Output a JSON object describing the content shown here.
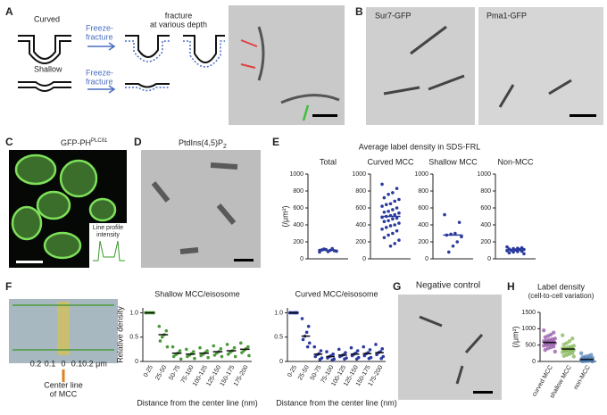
{
  "panels": {
    "A": {
      "letter": "A",
      "curved": "Curved",
      "shallow": "Shallow",
      "ff1": [
        "Freeze-",
        "fracture"
      ],
      "ff2": [
        "Freeze-",
        "fracture"
      ],
      "fracture": [
        "fracture",
        "at various depth"
      ]
    },
    "B": {
      "letter": "B",
      "left": "Sur7-GFP",
      "right": "Pma1-GFP"
    },
    "C": {
      "letter": "C",
      "title": "GFP-PH",
      "sup": "PLCδ1",
      "inset": [
        "Line profile",
        "intensity"
      ]
    },
    "D": {
      "letter": "D",
      "title": "PtdIns(4,5)P",
      "sub": "2"
    },
    "E": {
      "letter": "E"
    },
    "F": {
      "letter": "F",
      "scale": [
        "0.2",
        "0.1",
        "0",
        "0.1",
        "0.2 μm"
      ],
      "center": [
        "Center line",
        "of MCC"
      ]
    },
    "G": {
      "letter": "G",
      "title": "Negative control"
    },
    "H": {
      "letter": "H"
    }
  },
  "chart_data": [
    {
      "type": "strip",
      "facets": true,
      "title": "Average label density in SDS-FRL",
      "ylabel": "(/μm²)",
      "color": "#2b3a9c",
      "median_color": "#2b3a9c",
      "categories": [
        "Total",
        "Curved MCC",
        "Shallow MCC",
        "Non-MCC"
      ],
      "points": [
        [
          80,
          95,
          100,
          110,
          105,
          90,
          120,
          85,
          115,
          100
        ],
        [
          880,
          830,
          780,
          760,
          720,
          700,
          680,
          650,
          640,
          620,
          600,
          580,
          560,
          550,
          540,
          520,
          510,
          500,
          490,
          480,
          470,
          450,
          440,
          420,
          400,
          390,
          370,
          350,
          330,
          300,
          280,
          250,
          220,
          180,
          150
        ],
        [
          520,
          430,
          300,
          290,
          280,
          260,
          200,
          150,
          80
        ],
        [
          140,
          130,
          125,
          120,
          115,
          110,
          110,
          105,
          100,
          95,
          90,
          85,
          80,
          70,
          60
        ]
      ],
      "medians": [
        100,
        500,
        280,
        105
      ],
      "ylim": [
        0,
        1000
      ],
      "yticks": [
        0,
        200,
        400,
        600,
        800,
        1000
      ]
    },
    {
      "type": "strip",
      "title": "Shallow MCC/eisosome",
      "ylabel": "Relative density",
      "xlabel": "Distance from the center line (nm)",
      "color": "#4a9a3a",
      "median_color": "#111",
      "categories": [
        "0-25",
        "25-50",
        "50-75",
        "75-100",
        "100-125",
        "125-150",
        "150-175",
        "175-200"
      ],
      "points": [
        [
          1,
          1,
          1,
          1,
          1,
          1
        ],
        [
          0.72,
          0.63,
          0.55,
          0.5,
          0.42,
          0.3
        ],
        [
          0.3,
          0.22,
          0.17,
          0.14,
          0.1,
          0.05
        ],
        [
          0.25,
          0.2,
          0.16,
          0.13,
          0.1,
          0.06
        ],
        [
          0.28,
          0.22,
          0.18,
          0.15,
          0.12,
          0.08
        ],
        [
          0.32,
          0.26,
          0.2,
          0.17,
          0.13,
          0.1
        ],
        [
          0.35,
          0.28,
          0.22,
          0.19,
          0.15,
          0.1
        ],
        [
          0.38,
          0.3,
          0.26,
          0.22,
          0.18,
          0.12
        ]
      ],
      "medians": [
        1,
        0.55,
        0.17,
        0.15,
        0.17,
        0.2,
        0.22,
        0.25
      ],
      "ylim": [
        0,
        1.1
      ],
      "yticks": [
        0,
        0.5,
        {
          "value": 1,
          "label": "1.0"
        }
      ]
    },
    {
      "type": "strip",
      "title": "Curved MCC/eisosome",
      "xlabel": "Distance from the center line (nm)",
      "color": "#2b3aa0",
      "median_color": "#111",
      "categories": [
        "0-25",
        "25-50",
        "50-75",
        "75-100",
        "100-125",
        "125-150",
        "150-175",
        "175-200"
      ],
      "points": [
        [
          1,
          1,
          1,
          1,
          1,
          1,
          1
        ],
        [
          0.88,
          0.72,
          0.6,
          0.52,
          0.45,
          0.38,
          0.3
        ],
        [
          0.3,
          0.22,
          0.16,
          0.14,
          0.1,
          0.07,
          0.04
        ],
        [
          0.2,
          0.15,
          0.12,
          0.1,
          0.07,
          0.05,
          0.03
        ],
        [
          0.25,
          0.18,
          0.14,
          0.12,
          0.1,
          0.07,
          0.05
        ],
        [
          0.28,
          0.22,
          0.17,
          0.15,
          0.12,
          0.08,
          0.05
        ],
        [
          0.3,
          0.24,
          0.18,
          0.16,
          0.12,
          0.08,
          0.06
        ],
        [
          0.35,
          0.26,
          0.2,
          0.18,
          0.14,
          0.1,
          0.06
        ]
      ],
      "medians": [
        1,
        0.52,
        0.15,
        0.1,
        0.13,
        0.15,
        0.16,
        0.18
      ],
      "ylim": [
        0,
        1.1
      ],
      "yticks": [
        0,
        0.5,
        {
          "value": 1,
          "label": "1.0"
        }
      ]
    },
    {
      "type": "strip",
      "title": "Label density",
      "subtitle": "(cell-to-cell variation)",
      "ylabel": "(/μm²)",
      "colors": [
        "#8a4aa0",
        "#7ab04a",
        "#4a7ab0"
      ],
      "median_color": "#111",
      "categories": [
        "curved MCC",
        "shallow MCC",
        "non-MCC"
      ],
      "points": [
        [
          950,
          880,
          820,
          780,
          740,
          700,
          680,
          660,
          640,
          620,
          600,
          590,
          580,
          570,
          560,
          540,
          520,
          500,
          480,
          460,
          430,
          400,
          350,
          300
        ],
        [
          800,
          700,
          620,
          560,
          520,
          480,
          450,
          430,
          410,
          400,
          390,
          380,
          370,
          360,
          350,
          340,
          320,
          300,
          280,
          260,
          230,
          200,
          170,
          150
        ],
        [
          250,
          200,
          170,
          150,
          130,
          110,
          100,
          90,
          80,
          70,
          65,
          60,
          55,
          50,
          45,
          40,
          35,
          30,
          25,
          20,
          15,
          10,
          5,
          0
        ]
      ],
      "medians": [
        580,
        380,
        60
      ],
      "ylim": [
        0,
        1500
      ],
      "yticks": [
        0,
        500,
        1000,
        1500
      ]
    }
  ]
}
